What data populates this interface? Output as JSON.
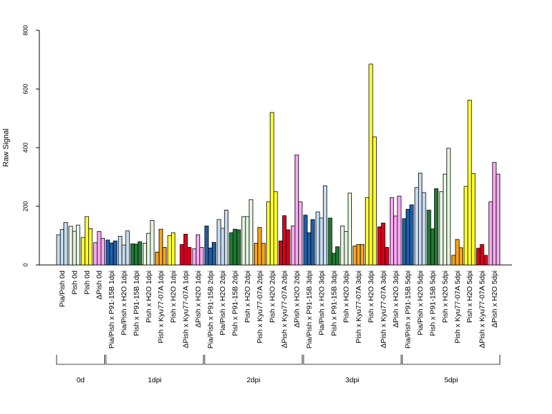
{
  "chart_data": {
    "type": "bar",
    "title": "",
    "xlabel": "",
    "ylabel": "Raw Signal",
    "ylim": [
      0,
      800
    ],
    "y_ticks": [
      0,
      200,
      400,
      600,
      800
    ],
    "grid": false,
    "legend": "none",
    "categories": [
      {
        "label": "Pia/Pish 0d",
        "group": "0d",
        "color": "#c6dbef",
        "values": [
          103,
          121,
          145
        ]
      },
      {
        "label": "Pish 0d",
        "group": "0d",
        "color": "#e5f5e0",
        "values": [
          132,
          115,
          136
        ]
      },
      {
        "label": "Pish 0d",
        "group": "0d",
        "color": "#ffff33",
        "values": [
          94,
          165,
          124
        ]
      },
      {
        "label": "ΔPish 0d",
        "group": "0d",
        "color": "#f7a8f0",
        "values": [
          76,
          114,
          91
        ]
      },
      {
        "label": "Pia/Pish x P91-15B 1dpi",
        "group": "1dpi",
        "color": "#1f5fa8",
        "values": [
          85,
          75,
          82
        ]
      },
      {
        "label": "Pia/Pish x H2O 1dpi",
        "group": "1dpi",
        "color": "#c6dbef",
        "values": [
          98,
          68,
          116
        ]
      },
      {
        "label": "Pish x P91-15B 1dpi",
        "group": "1dpi",
        "color": "#1f7a32",
        "values": [
          72,
          71,
          79
        ]
      },
      {
        "label": "Pish x H2O 1dpi",
        "group": "1dpi",
        "color": "#e5f5e0",
        "values": [
          74,
          108,
          152
        ]
      },
      {
        "label": "Pish x Kyu77-07A 1dpi",
        "group": "1dpi",
        "color": "#f5a21b",
        "values": [
          44,
          122,
          60
        ]
      },
      {
        "label": "Pish x H2O 1dpi",
        "group": "1dpi",
        "color": "#ffff33",
        "values": [
          100,
          110,
          0
        ]
      },
      {
        "label": "ΔPish x Kyu77-07A 1dpi",
        "group": "1dpi",
        "color": "#d7001e",
        "values": [
          70,
          105,
          60
        ]
      },
      {
        "label": "ΔPish x H2O 1dpi",
        "group": "1dpi",
        "color": "#f7a8f0",
        "values": [
          55,
          103,
          60
        ]
      },
      {
        "label": "Pia/Pish x P91-15B 2dpi",
        "group": "2dpi",
        "color": "#1f5fa8",
        "values": [
          133,
          58,
          77
        ]
      },
      {
        "label": "Pia/Pish x H2O 2dpi",
        "group": "2dpi",
        "color": "#c6dbef",
        "values": [
          155,
          125,
          187
        ]
      },
      {
        "label": "Pish x P91-15B 2dpi",
        "group": "2dpi",
        "color": "#1f7a32",
        "values": [
          110,
          122,
          120
        ]
      },
      {
        "label": "Pish x H2O 2dpi",
        "group": "2dpi",
        "color": "#e5f5e0",
        "values": [
          165,
          165,
          223
        ]
      },
      {
        "label": "Pish x Kyu77-07A 2dpi",
        "group": "2dpi",
        "color": "#f5a21b",
        "values": [
          74,
          128,
          74
        ]
      },
      {
        "label": "Pish x H2O 2dpi",
        "group": "2dpi",
        "color": "#ffff33",
        "values": [
          215,
          520,
          250
        ]
      },
      {
        "label": "ΔPish x Kyu77-07A 2dpi",
        "group": "2dpi",
        "color": "#d7001e",
        "values": [
          82,
          168,
          120
        ]
      },
      {
        "label": "ΔPish x H2O 2dpi",
        "group": "2dpi",
        "color": "#f7a8f0",
        "values": [
          133,
          375,
          215
        ]
      },
      {
        "label": "Pia/Pish x P91-15B 3dpi",
        "group": "3dpi",
        "color": "#1f5fa8",
        "values": [
          170,
          110,
          155
        ]
      },
      {
        "label": "Pia/Pish x H2O 3dpi",
        "group": "3dpi",
        "color": "#c6dbef",
        "values": [
          181,
          160,
          270
        ]
      },
      {
        "label": "Pish x P91-15B 3dpi",
        "group": "3dpi",
        "color": "#1f7a32",
        "values": [
          160,
          40,
          62
        ]
      },
      {
        "label": "Pish x H2O 3dpi",
        "group": "3dpi",
        "color": "#e5f5e0",
        "values": [
          133,
          114,
          245
        ]
      },
      {
        "label": "Pish x Kyu77-07A 3dpi",
        "group": "3dpi",
        "color": "#f5a21b",
        "values": [
          65,
          70,
          70
        ]
      },
      {
        "label": "Pish x H2O 3dpi",
        "group": "3dpi",
        "color": "#ffff33",
        "values": [
          230,
          685,
          437
        ]
      },
      {
        "label": "ΔPish x Kyu77-07A 3dpi",
        "group": "3dpi",
        "color": "#d7001e",
        "values": [
          130,
          143,
          60
        ]
      },
      {
        "label": "ΔPish x H2O 3dpi",
        "group": "3dpi",
        "color": "#f7a8f0",
        "values": [
          230,
          167,
          235
        ]
      },
      {
        "label": "Pia/Pish x P91-15B 5dpi",
        "group": "5dpi",
        "color": "#1f5fa8",
        "values": [
          158,
          190,
          205
        ]
      },
      {
        "label": "Pia/Pish x H2O 5dpi",
        "group": "5dpi",
        "color": "#c6dbef",
        "values": [
          264,
          313,
          247
        ]
      },
      {
        "label": "Pish x P91-15B 5dpi",
        "group": "5dpi",
        "color": "#1f7a32",
        "values": [
          187,
          123,
          260
        ]
      },
      {
        "label": "Pish x H2O 5dpi",
        "group": "5dpi",
        "color": "#e5f5e0",
        "values": [
          250,
          310,
          398
        ]
      },
      {
        "label": "Pish x Kyu77-07A 5dpi",
        "group": "5dpi",
        "color": "#f5a21b",
        "values": [
          33,
          87,
          59
        ]
      },
      {
        "label": "Pish x H2O 5dpi",
        "group": "5dpi",
        "color": "#ffff33",
        "values": [
          268,
          562,
          312
        ]
      },
      {
        "label": "ΔPish x Kyu77-07A 5dpi",
        "group": "5dpi",
        "color": "#d7001e",
        "values": [
          57,
          70,
          33
        ]
      },
      {
        "label": "ΔPish x H2O 5dpi",
        "group": "5dpi",
        "color": "#f7a8f0",
        "values": [
          215,
          350,
          310
        ]
      }
    ],
    "groups": [
      "0d",
      "1dpi",
      "2dpi",
      "3dpi",
      "5dpi"
    ]
  }
}
